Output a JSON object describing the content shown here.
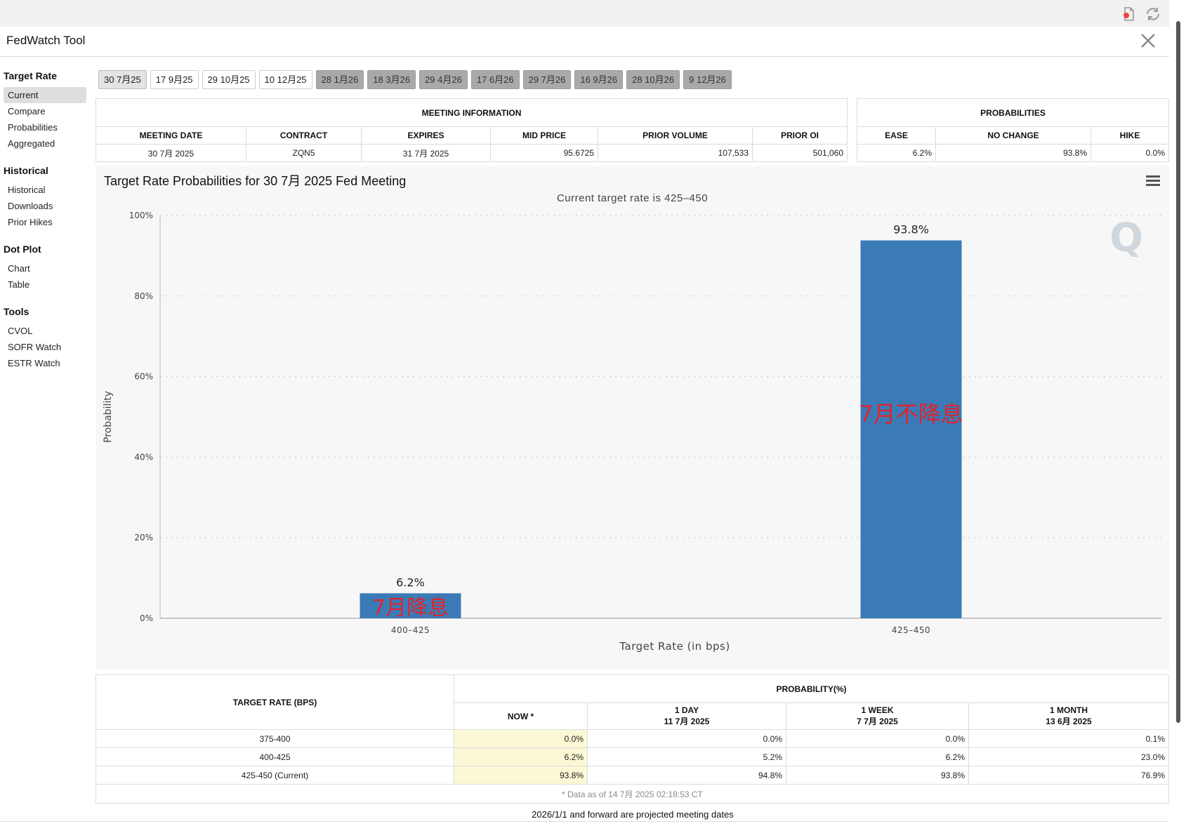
{
  "header": {
    "title": "FedWatch Tool",
    "icons": [
      "export-icon",
      "refresh-icon",
      "x-logo-icon"
    ]
  },
  "sidebar": {
    "groups": [
      {
        "title": "Target Rate",
        "items": [
          "Current",
          "Compare",
          "Probabilities",
          "Aggregated"
        ]
      },
      {
        "title": "Historical",
        "items": [
          "Historical",
          "Downloads",
          "Prior Hikes"
        ]
      },
      {
        "title": "Dot Plot",
        "items": [
          "Chart",
          "Table"
        ]
      },
      {
        "title": "Tools",
        "items": [
          "CVOL",
          "SOFR Watch",
          "ESTR Watch"
        ]
      }
    ]
  },
  "tabs": [
    "30 7月25",
    "17 9月25",
    "29 10月25",
    "10 12月25",
    "28 1月26",
    "18 3月26",
    "29 4月26",
    "17 6月26",
    "29 7月26",
    "16 9月26",
    "28 10月26",
    "9 12月26"
  ],
  "meeting_info": {
    "caption": "MEETING INFORMATION",
    "headers": [
      "MEETING DATE",
      "CONTRACT",
      "EXPIRES",
      "MID PRICE",
      "PRIOR VOLUME",
      "PRIOR OI"
    ],
    "values": [
      "30 7月 2025",
      "ZQN5",
      "31 7月 2025",
      "95.6725",
      "107,533",
      "501,060"
    ]
  },
  "probabilities": {
    "caption": "PROBABILITIES",
    "headers": [
      "EASE",
      "NO CHANGE",
      "HIKE"
    ],
    "values": [
      "6.2%",
      "93.8%",
      "0.0%"
    ]
  },
  "chart_data": {
    "type": "bar",
    "title": "Target Rate Probabilities for 30 7月 2025 Fed Meeting",
    "subtitle": "Current target rate is 425–450",
    "xlabel": "Target Rate (in bps)",
    "ylabel": "Probability",
    "categories": [
      "400–425",
      "425–450"
    ],
    "values": [
      6.2,
      93.8
    ],
    "data_labels": [
      "6.2%",
      "93.8%"
    ],
    "annotations": [
      "7月降息",
      "7月不降息"
    ],
    "ylim": [
      0,
      100
    ],
    "yticks": [
      "0%",
      "20%",
      "40%",
      "60%",
      "80%",
      "100%"
    ],
    "grid": true,
    "bar_color": "#3a7bb7",
    "annotation_color": "#e0242b",
    "watermark": "Q"
  },
  "history_table": {
    "rate_header": "TARGET RATE (BPS)",
    "prob_header": "PROBABILITY(%)",
    "columns": [
      {
        "line1": "NOW *",
        "line2": ""
      },
      {
        "line1": "1 DAY",
        "line2": "11 7月 2025"
      },
      {
        "line1": "1 WEEK",
        "line2": "7 7月 2025"
      },
      {
        "line1": "1 MONTH",
        "line2": "13 6月 2025"
      }
    ],
    "rows": [
      {
        "rate": "375-400",
        "values": [
          "0.0%",
          "0.0%",
          "0.0%",
          "0.1%"
        ]
      },
      {
        "rate": "400-425",
        "values": [
          "6.2%",
          "5.2%",
          "6.2%",
          "23.0%"
        ]
      },
      {
        "rate": "425-450 (Current)",
        "values": [
          "93.8%",
          "94.8%",
          "93.8%",
          "76.9%"
        ]
      }
    ],
    "footnote": "* Data as of 14 7月 2025 02:18:53 CT"
  },
  "page_note": "2026/1/1 and forward are projected meeting dates"
}
